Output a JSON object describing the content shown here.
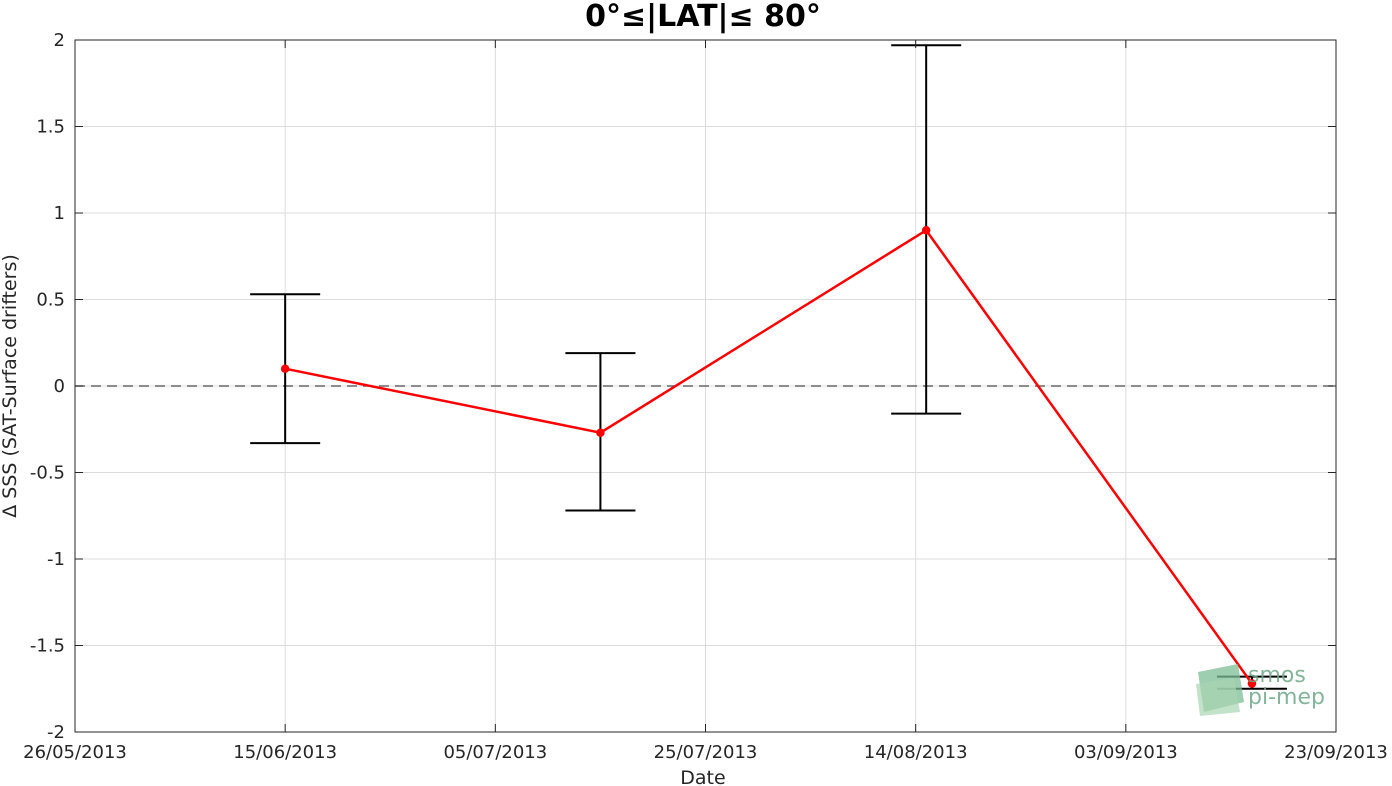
{
  "chart_data": {
    "type": "line",
    "title": "0°≤|LAT|≤ 80°",
    "xlabel": "Date",
    "ylabel": "Δ SSS (SAT-Surface drifters)",
    "x_tick_labels": [
      "26/05/2013",
      "15/06/2013",
      "05/07/2013",
      "25/07/2013",
      "14/08/2013",
      "03/09/2013",
      "23/09/2013"
    ],
    "x_range": [
      "26/05/2013",
      "23/09/2013"
    ],
    "y_ticks": [
      -2,
      -1.5,
      -1,
      -0.5,
      0,
      0.5,
      1,
      1.5,
      2
    ],
    "y_tick_labels": [
      "-2",
      "-1.5",
      "-1",
      "-0.5",
      "0",
      "0.5",
      "1",
      "1.5",
      "2"
    ],
    "ylim": [
      -2,
      2
    ],
    "grid": true,
    "reference_line": {
      "y": 0,
      "style": "dashed",
      "color": "#666666"
    },
    "series": [
      {
        "color": "#ff0000",
        "points": [
          {
            "x": "15/06/2013",
            "y": 0.1,
            "err_low": -0.33,
            "err_high": 0.53
          },
          {
            "x": "15/07/2013",
            "y": -0.27,
            "err_low": -0.72,
            "err_high": 0.19
          },
          {
            "x": "15/08/2013",
            "y": 0.9,
            "err_low": -0.16,
            "err_high": 1.97
          },
          {
            "x": "15/09/2013",
            "y": -1.72,
            "err_low": -1.75,
            "err_high": -1.68
          }
        ]
      }
    ],
    "errorbar_color": "#000000"
  },
  "logo": {
    "line1": "smos",
    "line2": "pi-mep"
  }
}
